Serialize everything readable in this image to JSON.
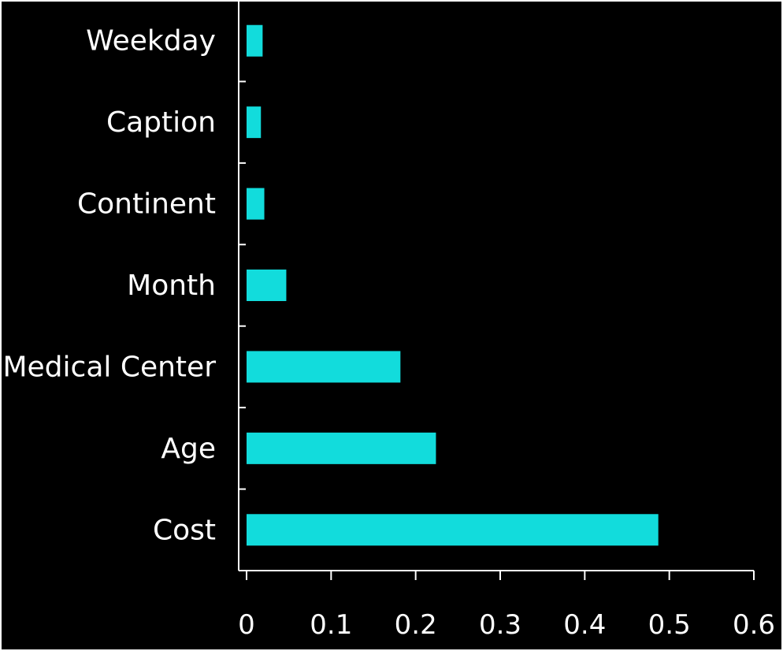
{
  "chart_data": {
    "type": "bar",
    "orientation": "horizontal",
    "categories": [
      "Cost",
      "Age",
      "Medical Center",
      "Month",
      "Continent",
      "Caption",
      "Weekday"
    ],
    "values": [
      0.487,
      0.224,
      0.182,
      0.047,
      0.021,
      0.017,
      0.019
    ],
    "xlim": [
      0,
      0.6
    ],
    "xticks": [
      "0",
      "0.1",
      "0.2",
      "0.3",
      "0.4",
      "0.5",
      "0.6"
    ],
    "title": "",
    "xlabel": "",
    "ylabel": "",
    "grid": false,
    "bar_color": "#12dcdc",
    "background_color": "#000000",
    "text_color": "#ffffff"
  }
}
